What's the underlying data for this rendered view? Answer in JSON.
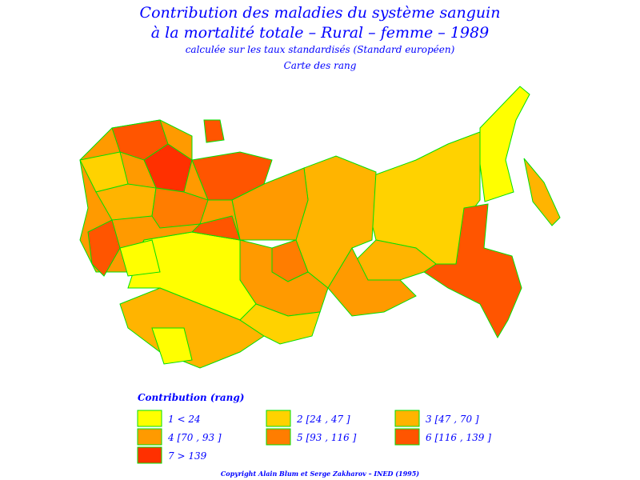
{
  "header": {
    "title_line1": "Contribution des maladies du système sanguin",
    "title_line2": "à la mortalité totale – Rural – femme – 1989",
    "subtitle": "calculée sur les taux standardisés (Standard européen)",
    "map_kind": "Carte des rang"
  },
  "legend": {
    "title": "Contribution (rang)",
    "items": [
      {
        "label": "1 < 24",
        "color": "#ffff00"
      },
      {
        "label": "2 [24 , 47 ]",
        "color": "#ffd200"
      },
      {
        "label": "3 [47 , 70 ]",
        "color": "#ffb400"
      },
      {
        "label": "4 [70 , 93 ]",
        "color": "#ff9a00"
      },
      {
        "label": "5 [93 , 116 ]",
        "color": "#ff7d00"
      },
      {
        "label": "6 [116 , 139 ]",
        "color": "#ff5500"
      },
      {
        "label": "7 > 139",
        "color": "#ff3000"
      }
    ]
  },
  "footer": {
    "copyright": "Copyright Alain Blum et Serge Zakharov – INED (1995)"
  }
}
